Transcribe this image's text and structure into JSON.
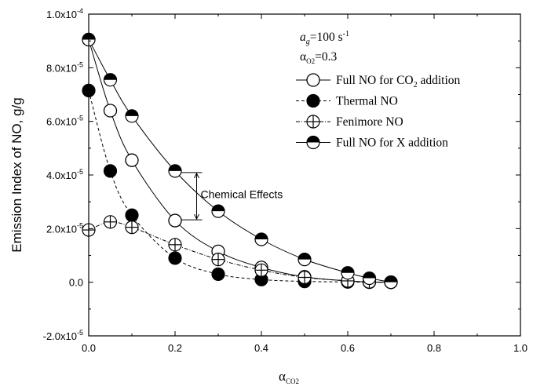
{
  "chart_data": {
    "type": "line",
    "xlabel": "α_CO2",
    "ylabel": "Emission Index of NO, g/g",
    "xlim": [
      0.0,
      1.0
    ],
    "ylim": [
      -2e-05,
      0.0001
    ],
    "x_ticks": [
      "0.0",
      "0.2",
      "0.4",
      "0.6",
      "0.8",
      "1.0"
    ],
    "y_ticks": [
      {
        "value": -2e-05,
        "label": "-2.0x10",
        "exp": "-5"
      },
      {
        "value": 0.0,
        "label": "0.0",
        "exp": ""
      },
      {
        "value": 2e-05,
        "label": "2.0x10",
        "exp": "-5"
      },
      {
        "value": 4e-05,
        "label": "4.0x10",
        "exp": "-5"
      },
      {
        "value": 6e-05,
        "label": "6.0x10",
        "exp": "-5"
      },
      {
        "value": 8e-05,
        "label": "8.0x10",
        "exp": "-5"
      },
      {
        "value": 0.0001,
        "label": "1.0x10",
        "exp": "-4"
      }
    ],
    "grid": false,
    "legend_position": "top-right",
    "conditions": [
      "a_g=100 s^-1",
      "α_O2=0.3"
    ],
    "annotation": "Chemical Effects",
    "series": [
      {
        "name": "Full NO for CO2 addition",
        "marker": "open-circle",
        "line": "solid",
        "x": [
          0.0,
          0.05,
          0.1,
          0.2,
          0.3,
          0.4,
          0.5,
          0.6,
          0.65,
          0.7
        ],
        "y": [
          9.05e-05,
          6.4e-05,
          4.55e-05,
          2.3e-05,
          1.15e-05,
          5.5e-06,
          2e-06,
          5e-07,
          1e-07,
          0.0
        ]
      },
      {
        "name": "Thermal NO",
        "marker": "filled-circle",
        "line": "dashed",
        "x": [
          0.0,
          0.05,
          0.1,
          0.2,
          0.3,
          0.4,
          0.5,
          0.6,
          0.65,
          0.7
        ],
        "y": [
          7.15e-05,
          4.15e-05,
          2.5e-05,
          9e-06,
          3e-06,
          1e-06,
          3e-07,
          1e-07,
          0.0,
          0.0
        ]
      },
      {
        "name": "Fenimore NO",
        "marker": "crossed-circle",
        "line": "dash-dot",
        "x": [
          0.0,
          0.05,
          0.1,
          0.2,
          0.3,
          0.4,
          0.5,
          0.6,
          0.65,
          0.7
        ],
        "y": [
          1.95e-05,
          2.25e-05,
          2.05e-05,
          1.4e-05,
          8.5e-06,
          4.5e-06,
          1.8e-06,
          5e-07,
          1e-07,
          0.0
        ]
      },
      {
        "name": "Full NO for X addition",
        "marker": "half-filled-circle",
        "line": "solid",
        "x": [
          0.0,
          0.05,
          0.1,
          0.2,
          0.3,
          0.4,
          0.5,
          0.6,
          0.65,
          0.7
        ],
        "y": [
          9.05e-05,
          7.55e-05,
          6.2e-05,
          4.15e-05,
          2.65e-05,
          1.6e-05,
          8.5e-06,
          3.5e-06,
          1.5e-06,
          0.0
        ]
      }
    ]
  }
}
